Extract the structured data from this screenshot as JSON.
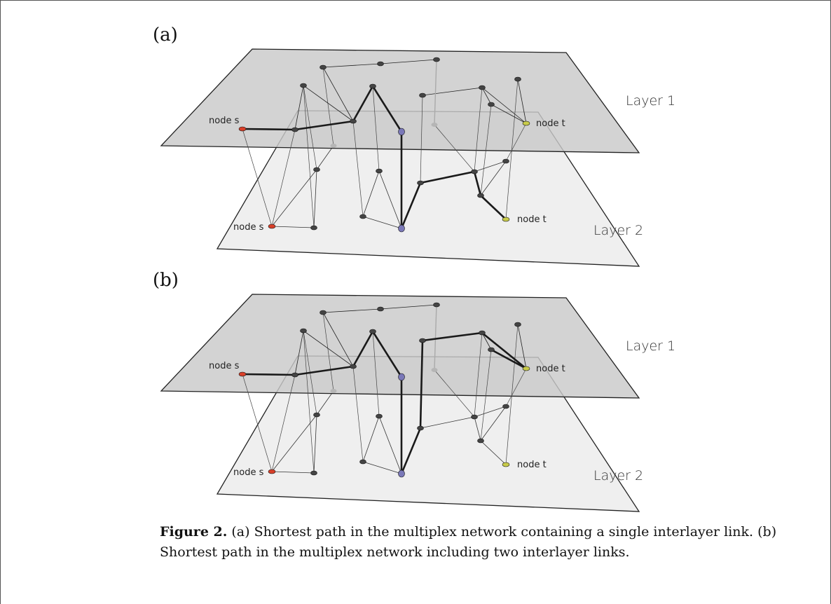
{
  "panels": [
    {
      "label": "(a)",
      "layer1_label": "Layer 1",
      "layer2_label": "Layer 2",
      "node_s_top": "node s",
      "node_t_top": "node t",
      "node_s_bottom": "node s",
      "node_t_bottom": "node t"
    },
    {
      "label": "(b)",
      "layer1_label": "Layer 1",
      "layer2_label": "Layer 2",
      "node_s_top": "node s",
      "node_t_top": "node t",
      "node_s_bottom": "node s",
      "node_t_bottom": "node t"
    }
  ],
  "caption": {
    "figure_label": "Figure 2.",
    "text": " (a) Shortest path in the multiplex network containing a single interlayer link. (b) Shortest path in the multiplex network including two interlayer links."
  },
  "colors": {
    "layer1_fill": "#cfcfcf",
    "layer2_fill": "#efefef",
    "node_default": "#444444",
    "node_s": "#d9402a",
    "node_t": "#c9cc4a",
    "node_interlayer": "#7a78b8",
    "path_edge": "#1a1a1a"
  }
}
